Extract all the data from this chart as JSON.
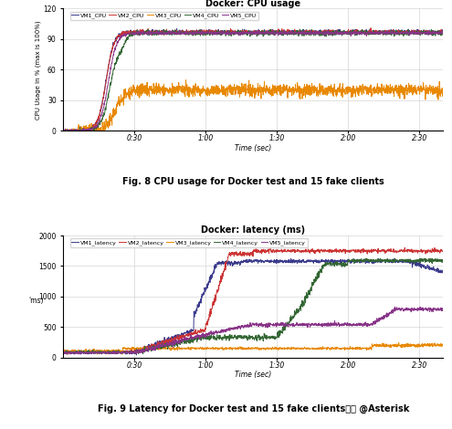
{
  "fig_title_1": "Docker: CPU usage",
  "fig_title_2": "Docker: latency (ms)",
  "fig_caption_1": "Fig. 8 CPU usage for Docker test and 15 fake clients",
  "fig_caption_2": "Fig. 9 Latency for Docker test and 15 fake clients",
  "fig_caption_2_suffix": "社区 @Asterisk",
  "cpu_ylabel": "CPU Usage in % (max is 100%)",
  "cpu_xlabel": "Time (sec)",
  "lat_ylabel": "'ms)",
  "lat_xlabel": "Time (sec)",
  "cpu_ylim": [
    0,
    120
  ],
  "lat_ylim": [
    0,
    2000
  ],
  "colors": {
    "VM1": "#3a3a8c",
    "VM2": "#cc3333",
    "VM3": "#e88800",
    "VM4": "#336633",
    "VM5": "#883388"
  },
  "background": "#ffffff",
  "grid_color": "#cccccc"
}
